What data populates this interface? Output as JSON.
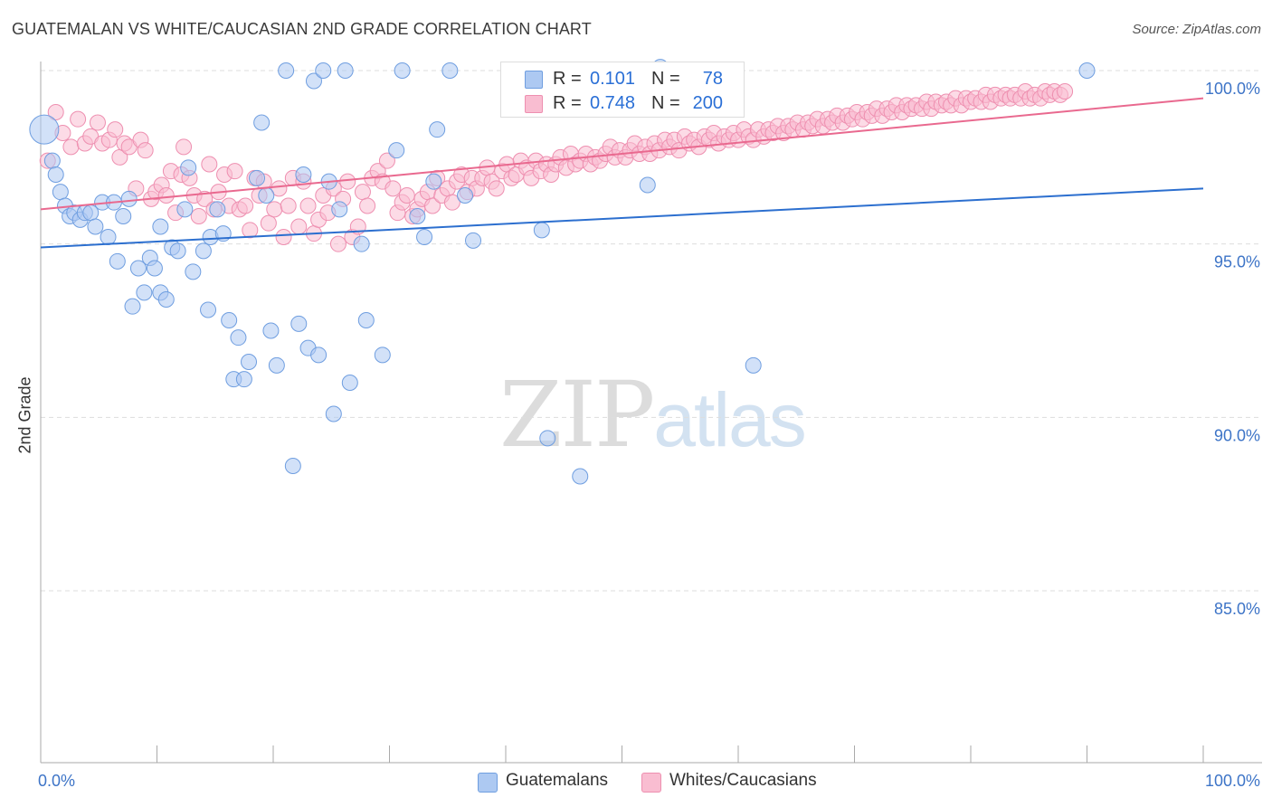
{
  "header": {
    "title": "GUATEMALAN VS WHITE/CAUCASIAN 2ND GRADE CORRELATION CHART",
    "source": "Source: ZipAtlas.com"
  },
  "watermark": {
    "part1": "ZIP",
    "part2": "atlas"
  },
  "legend": {
    "rows": [
      {
        "r_label": "R =",
        "r_value": "0.101",
        "n_label": "N =",
        "n_value": "78",
        "color": "#adc9f2"
      },
      {
        "r_label": "R =",
        "r_value": "0.748",
        "n_label": "N =",
        "n_value": "200",
        "color": "#f9bdd1"
      }
    ]
  },
  "bottom_legend": {
    "series1": "Guatemalans",
    "series2": "Whites/Caucasians"
  },
  "colors": {
    "blue_fill": "#adc9f2",
    "blue_edge": "#6f9ee0",
    "blue_line": "#2c6fcf",
    "pink_fill": "#f9bdd1",
    "pink_edge": "#ee8fb0",
    "pink_line": "#e9698f",
    "tick_label": "#3d74c7",
    "grid": "#dddddd"
  },
  "chart_data": {
    "type": "scatter",
    "title": "GUATEMALAN VS WHITE/CAUCASIAN 2ND GRADE CORRELATION CHART",
    "xlabel": "",
    "ylabel": "2nd Grade",
    "xlim": [
      0,
      100
    ],
    "ylim": [
      80.5,
      100.7
    ],
    "x_tick_labels": [
      "0.0%",
      "100.0%"
    ],
    "y_ticks": [
      {
        "value": 100,
        "label": "100.0%"
      },
      {
        "value": 95,
        "label": "95.0%"
      },
      {
        "value": 90,
        "label": "90.0%"
      },
      {
        "value": 85,
        "label": "85.0%"
      }
    ],
    "grid": true,
    "legend_placement": "top-center",
    "series": [
      {
        "name": "Guatemalans",
        "r": 0.101,
        "n": 78,
        "trend": {
          "x": [
            0,
            100
          ],
          "y": [
            94.9,
            96.6
          ]
        },
        "points": [
          [
            0.3,
            98.3
          ],
          [
            1.0,
            97.4
          ],
          [
            1.3,
            97.0
          ],
          [
            1.7,
            96.5
          ],
          [
            2.1,
            96.1
          ],
          [
            2.5,
            95.8
          ],
          [
            2.9,
            95.9
          ],
          [
            3.4,
            95.7
          ],
          [
            3.8,
            95.9
          ],
          [
            4.3,
            95.9
          ],
          [
            4.7,
            95.5
          ],
          [
            5.3,
            96.2
          ],
          [
            5.8,
            95.2
          ],
          [
            6.3,
            96.2
          ],
          [
            6.6,
            94.5
          ],
          [
            7.1,
            95.8
          ],
          [
            7.6,
            96.3
          ],
          [
            7.9,
            93.2
          ],
          [
            8.4,
            94.3
          ],
          [
            8.9,
            93.6
          ],
          [
            9.4,
            94.6
          ],
          [
            9.8,
            94.3
          ],
          [
            10.3,
            93.6
          ],
          [
            10.3,
            95.5
          ],
          [
            10.8,
            93.4
          ],
          [
            11.3,
            94.9
          ],
          [
            11.8,
            94.8
          ],
          [
            12.4,
            96.0
          ],
          [
            12.7,
            97.2
          ],
          [
            13.1,
            94.2
          ],
          [
            14.0,
            94.8
          ],
          [
            14.4,
            93.1
          ],
          [
            14.6,
            95.2
          ],
          [
            15.2,
            96.0
          ],
          [
            15.7,
            95.3
          ],
          [
            16.2,
            92.8
          ],
          [
            16.6,
            91.1
          ],
          [
            17.0,
            92.3
          ],
          [
            17.5,
            91.1
          ],
          [
            17.9,
            91.6
          ],
          [
            18.6,
            96.9
          ],
          [
            19.0,
            98.5
          ],
          [
            19.4,
            96.4
          ],
          [
            19.8,
            92.5
          ],
          [
            20.3,
            91.5
          ],
          [
            21.1,
            100.0
          ],
          [
            21.7,
            88.6
          ],
          [
            22.2,
            92.7
          ],
          [
            22.6,
            97.0
          ],
          [
            23.0,
            92.0
          ],
          [
            23.5,
            99.7
          ],
          [
            23.9,
            91.8
          ],
          [
            24.3,
            100.0
          ],
          [
            24.8,
            96.8
          ],
          [
            25.2,
            90.1
          ],
          [
            25.7,
            96.0
          ],
          [
            26.2,
            100.0
          ],
          [
            26.6,
            91.0
          ],
          [
            27.6,
            95.0
          ],
          [
            28.0,
            92.8
          ],
          [
            29.4,
            91.8
          ],
          [
            30.6,
            97.7
          ],
          [
            31.1,
            100.0
          ],
          [
            32.4,
            95.8
          ],
          [
            33.0,
            95.2
          ],
          [
            34.1,
            98.3
          ],
          [
            35.2,
            100.0
          ],
          [
            36.5,
            96.4
          ],
          [
            37.2,
            95.1
          ],
          [
            43.1,
            95.4
          ],
          [
            43.6,
            89.4
          ],
          [
            46.4,
            88.3
          ],
          [
            52.2,
            96.7
          ],
          [
            53.3,
            100.1
          ],
          [
            54.5,
            100.0
          ],
          [
            61.3,
            91.5
          ],
          [
            90.0,
            100.0
          ],
          [
            33.8,
            96.8
          ]
        ]
      },
      {
        "name": "Whites/Caucasians",
        "r": 0.748,
        "n": 200,
        "trend": {
          "x": [
            0,
            100
          ],
          "y": [
            96.0,
            99.2
          ]
        },
        "points": [
          [
            0.6,
            97.4
          ],
          [
            1.3,
            98.8
          ],
          [
            1.9,
            98.2
          ],
          [
            2.6,
            97.8
          ],
          [
            3.2,
            98.6
          ],
          [
            3.8,
            97.9
          ],
          [
            4.3,
            98.1
          ],
          [
            4.9,
            98.5
          ],
          [
            5.3,
            97.9
          ],
          [
            5.9,
            98.0
          ],
          [
            6.4,
            98.3
          ],
          [
            6.8,
            97.5
          ],
          [
            7.2,
            97.9
          ],
          [
            7.6,
            97.8
          ],
          [
            8.2,
            96.6
          ],
          [
            8.6,
            98.0
          ],
          [
            9.0,
            97.7
          ],
          [
            9.5,
            96.3
          ],
          [
            9.9,
            96.5
          ],
          [
            10.4,
            96.7
          ],
          [
            10.8,
            96.4
          ],
          [
            11.2,
            97.1
          ],
          [
            11.6,
            95.9
          ],
          [
            12.1,
            97.0
          ],
          [
            12.3,
            97.8
          ],
          [
            12.8,
            96.9
          ],
          [
            13.2,
            96.4
          ],
          [
            13.6,
            95.8
          ],
          [
            14.1,
            96.3
          ],
          [
            14.5,
            97.3
          ],
          [
            14.9,
            96.0
          ],
          [
            15.3,
            96.5
          ],
          [
            15.8,
            97.0
          ],
          [
            16.2,
            96.1
          ],
          [
            16.7,
            97.1
          ],
          [
            17.1,
            96.0
          ],
          [
            17.6,
            96.1
          ],
          [
            18.0,
            95.4
          ],
          [
            18.4,
            96.9
          ],
          [
            18.8,
            96.4
          ],
          [
            19.2,
            96.8
          ],
          [
            19.6,
            95.6
          ],
          [
            20.1,
            96.0
          ],
          [
            20.5,
            96.6
          ],
          [
            20.9,
            95.2
          ],
          [
            21.3,
            96.1
          ],
          [
            21.7,
            96.9
          ],
          [
            22.2,
            95.5
          ],
          [
            22.6,
            96.8
          ],
          [
            23.0,
            96.1
          ],
          [
            23.5,
            95.3
          ],
          [
            23.9,
            95.7
          ],
          [
            24.3,
            96.4
          ],
          [
            24.7,
            95.9
          ],
          [
            25.2,
            96.6
          ],
          [
            25.6,
            95.0
          ],
          [
            26.0,
            96.3
          ],
          [
            26.4,
            96.8
          ],
          [
            26.8,
            95.2
          ],
          [
            27.3,
            95.5
          ],
          [
            27.7,
            96.5
          ],
          [
            28.1,
            96.1
          ],
          [
            28.5,
            96.9
          ],
          [
            29.0,
            97.1
          ],
          [
            29.4,
            96.8
          ],
          [
            29.8,
            97.4
          ],
          [
            30.3,
            96.6
          ],
          [
            30.7,
            95.9
          ],
          [
            31.1,
            96.2
          ],
          [
            31.5,
            96.4
          ],
          [
            32.0,
            95.8
          ],
          [
            32.4,
            96.0
          ],
          [
            32.8,
            96.3
          ],
          [
            33.3,
            96.5
          ],
          [
            33.7,
            96.1
          ],
          [
            34.1,
            96.9
          ],
          [
            34.5,
            96.4
          ],
          [
            35.0,
            96.6
          ],
          [
            35.4,
            96.2
          ],
          [
            35.8,
            96.8
          ],
          [
            36.2,
            97.0
          ],
          [
            36.7,
            96.5
          ],
          [
            37.1,
            96.9
          ],
          [
            37.5,
            96.6
          ],
          [
            38.0,
            96.9
          ],
          [
            38.4,
            97.2
          ],
          [
            38.8,
            96.8
          ],
          [
            39.2,
            96.6
          ],
          [
            39.7,
            97.1
          ],
          [
            40.1,
            97.3
          ],
          [
            40.5,
            96.9
          ],
          [
            40.9,
            97.0
          ],
          [
            41.3,
            97.4
          ],
          [
            41.8,
            97.2
          ],
          [
            42.2,
            96.9
          ],
          [
            42.6,
            97.4
          ],
          [
            43.0,
            97.1
          ],
          [
            43.5,
            97.3
          ],
          [
            43.9,
            97.0
          ],
          [
            44.3,
            97.3
          ],
          [
            44.7,
            97.5
          ],
          [
            45.2,
            97.2
          ],
          [
            45.6,
            97.6
          ],
          [
            46.0,
            97.3
          ],
          [
            46.4,
            97.4
          ],
          [
            46.9,
            97.6
          ],
          [
            47.3,
            97.3
          ],
          [
            47.7,
            97.5
          ],
          [
            48.1,
            97.4
          ],
          [
            48.6,
            97.6
          ],
          [
            49.0,
            97.8
          ],
          [
            49.4,
            97.5
          ],
          [
            49.8,
            97.7
          ],
          [
            50.3,
            97.5
          ],
          [
            50.7,
            97.7
          ],
          [
            51.1,
            97.9
          ],
          [
            51.5,
            97.6
          ],
          [
            52.0,
            97.8
          ],
          [
            52.4,
            97.6
          ],
          [
            52.8,
            97.9
          ],
          [
            53.2,
            97.7
          ],
          [
            53.7,
            98.0
          ],
          [
            54.1,
            97.8
          ],
          [
            54.5,
            98.0
          ],
          [
            54.9,
            97.7
          ],
          [
            55.4,
            98.1
          ],
          [
            55.8,
            97.9
          ],
          [
            56.2,
            98.0
          ],
          [
            56.6,
            97.8
          ],
          [
            57.1,
            98.1
          ],
          [
            57.5,
            98.0
          ],
          [
            57.9,
            98.2
          ],
          [
            58.3,
            97.9
          ],
          [
            58.8,
            98.1
          ],
          [
            59.2,
            98.0
          ],
          [
            59.6,
            98.2
          ],
          [
            60.0,
            98.0
          ],
          [
            60.5,
            98.3
          ],
          [
            60.9,
            98.1
          ],
          [
            61.3,
            98.0
          ],
          [
            61.7,
            98.3
          ],
          [
            62.2,
            98.1
          ],
          [
            62.6,
            98.3
          ],
          [
            63.0,
            98.2
          ],
          [
            63.4,
            98.4
          ],
          [
            63.9,
            98.2
          ],
          [
            64.3,
            98.4
          ],
          [
            64.7,
            98.3
          ],
          [
            65.1,
            98.5
          ],
          [
            65.6,
            98.3
          ],
          [
            66.0,
            98.5
          ],
          [
            66.4,
            98.4
          ],
          [
            66.8,
            98.6
          ],
          [
            67.3,
            98.4
          ],
          [
            67.7,
            98.6
          ],
          [
            68.1,
            98.5
          ],
          [
            68.5,
            98.7
          ],
          [
            69.0,
            98.5
          ],
          [
            69.4,
            98.7
          ],
          [
            69.8,
            98.6
          ],
          [
            70.2,
            98.8
          ],
          [
            70.7,
            98.6
          ],
          [
            71.1,
            98.8
          ],
          [
            71.5,
            98.7
          ],
          [
            71.9,
            98.9
          ],
          [
            72.4,
            98.7
          ],
          [
            72.8,
            98.9
          ],
          [
            73.2,
            98.8
          ],
          [
            73.6,
            99.0
          ],
          [
            74.1,
            98.8
          ],
          [
            74.5,
            99.0
          ],
          [
            74.9,
            98.9
          ],
          [
            75.3,
            99.0
          ],
          [
            75.8,
            98.9
          ],
          [
            76.2,
            99.1
          ],
          [
            76.6,
            98.9
          ],
          [
            77.0,
            99.1
          ],
          [
            77.5,
            99.0
          ],
          [
            77.9,
            99.1
          ],
          [
            78.3,
            99.0
          ],
          [
            78.7,
            99.2
          ],
          [
            79.2,
            99.0
          ],
          [
            79.6,
            99.2
          ],
          [
            80.0,
            99.1
          ],
          [
            80.4,
            99.2
          ],
          [
            80.9,
            99.1
          ],
          [
            81.3,
            99.3
          ],
          [
            81.7,
            99.1
          ],
          [
            82.1,
            99.3
          ],
          [
            82.6,
            99.2
          ],
          [
            83.0,
            99.3
          ],
          [
            83.4,
            99.2
          ],
          [
            83.8,
            99.3
          ],
          [
            84.3,
            99.2
          ],
          [
            84.7,
            99.4
          ],
          [
            85.1,
            99.2
          ],
          [
            85.5,
            99.3
          ],
          [
            86.0,
            99.2
          ],
          [
            86.4,
            99.4
          ],
          [
            86.8,
            99.3
          ],
          [
            87.2,
            99.4
          ],
          [
            87.7,
            99.3
          ],
          [
            88.1,
            99.4
          ]
        ]
      }
    ]
  }
}
